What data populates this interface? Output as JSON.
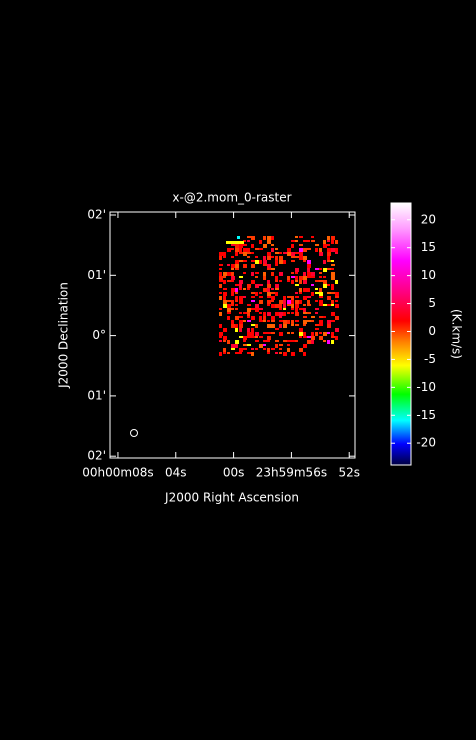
{
  "chart_data": {
    "type": "raster",
    "title": "x-@2.mom_0-raster",
    "x_label": "J2000 Right Ascension",
    "y_label": "J2000 Declination",
    "xlim": [
      8.55,
      -8.4
    ],
    "xticks": [
      {
        "value": 8,
        "label": "00h00m08s"
      },
      {
        "value": 4,
        "label": "04s"
      },
      {
        "value": 0,
        "label": "00s"
      },
      {
        "value": -4,
        "label": "23h59m56s"
      },
      {
        "value": -8,
        "label": "52s"
      }
    ],
    "ylim": [
      -2.03,
      2.05
    ],
    "yticks": [
      {
        "value": 2,
        "label": "02'"
      },
      {
        "value": 1,
        "label": "01'"
      },
      {
        "value": 0,
        "label": "0°"
      },
      {
        "value": -1,
        "label": "01'"
      },
      {
        "value": -2,
        "label": "02'"
      }
    ],
    "colorbar": {
      "label": "(K.km/s)",
      "ylim": [
        -23.9,
        23
      ],
      "yticks": [
        -20,
        -15,
        -10,
        -5,
        0,
        5,
        10,
        15,
        20
      ]
    }
  }
}
